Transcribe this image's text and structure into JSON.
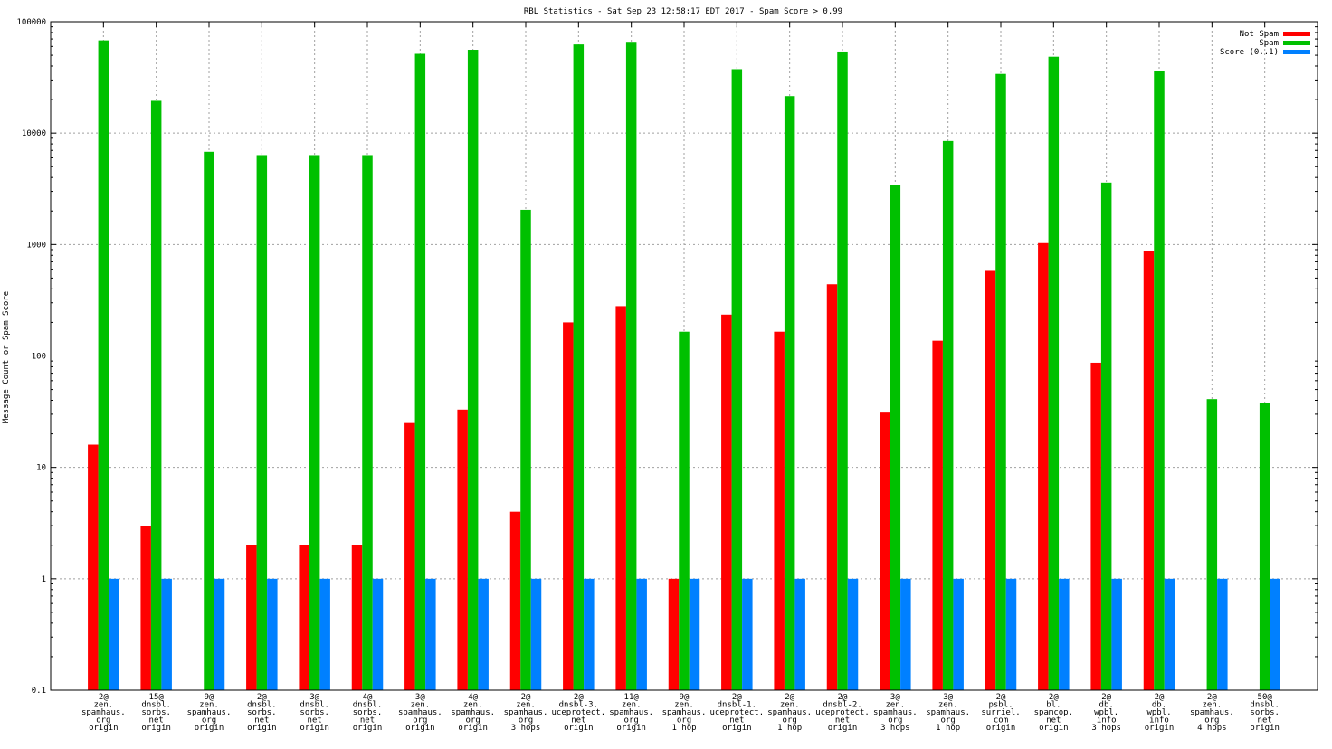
{
  "chart_data": {
    "type": "bar",
    "title": "RBL Statistics - Sat Sep 23 12:58:17 EDT 2017 - Spam Score > 0.99",
    "ylabel": "Message Count or Spam Score",
    "xlabel": "",
    "yscale": "log",
    "ylim": [
      0.1,
      100000
    ],
    "yticks": [
      "0.1",
      "1",
      "10",
      "100",
      "1000",
      "10000",
      "100000"
    ],
    "grid": true,
    "legend_position": "top-right",
    "categories": [
      [
        "2@",
        "zen.",
        "spamhaus.",
        "org",
        "origin"
      ],
      [
        "15@",
        "dnsbl.",
        "sorbs.",
        "net",
        "origin"
      ],
      [
        "9@",
        "zen.",
        "spamhaus.",
        "org",
        "origin"
      ],
      [
        "2@",
        "dnsbl.",
        "sorbs.",
        "net",
        "origin"
      ],
      [
        "3@",
        "dnsbl.",
        "sorbs.",
        "net",
        "origin"
      ],
      [
        "4@",
        "dnsbl.",
        "sorbs.",
        "net",
        "origin"
      ],
      [
        "3@",
        "zen.",
        "spamhaus.",
        "org",
        "origin"
      ],
      [
        "4@",
        "zen.",
        "spamhaus.",
        "org",
        "origin"
      ],
      [
        "2@",
        "zen.",
        "spamhaus.",
        "org",
        "3 hops"
      ],
      [
        "2@",
        "dnsbl-3.",
        "uceprotect.",
        "net",
        "origin"
      ],
      [
        "11@",
        "zen.",
        "spamhaus.",
        "org",
        "origin"
      ],
      [
        "9@",
        "zen.",
        "spamhaus.",
        "org",
        "1 hop"
      ],
      [
        "2@",
        "dnsbl-1.",
        "uceprotect.",
        "net",
        "origin"
      ],
      [
        "2@",
        "zen.",
        "spamhaus.",
        "org",
        "1 hop"
      ],
      [
        "2@",
        "dnsbl-2.",
        "uceprotect.",
        "net",
        "origin"
      ],
      [
        "3@",
        "zen.",
        "spamhaus.",
        "org",
        "3 hops"
      ],
      [
        "3@",
        "zen.",
        "spamhaus.",
        "org",
        "1 hop"
      ],
      [
        "2@",
        "psbl.",
        "surriel.",
        "com",
        "origin"
      ],
      [
        "2@",
        "bl.",
        "spamcop.",
        "net",
        "origin"
      ],
      [
        "2@",
        "db.",
        "wpbl.",
        "info",
        "3 hops"
      ],
      [
        "2@",
        "db.",
        "wpbl.",
        "info",
        "origin"
      ],
      [
        "2@",
        "zen.",
        "spamhaus.",
        "org",
        "4 hops"
      ],
      [
        "50@",
        "dnsbl.",
        "sorbs.",
        "net",
        "origin"
      ]
    ],
    "series": [
      {
        "name": "Not Spam",
        "color": "#ff0000",
        "values": [
          16,
          3,
          null,
          2,
          2,
          2,
          25,
          33,
          4,
          200,
          280,
          1,
          235,
          165,
          440,
          31,
          137,
          580,
          1030,
          87,
          870,
          null,
          null
        ]
      },
      {
        "name": "Spam",
        "color": "#00c000",
        "values": [
          68000,
          19500,
          6800,
          6350,
          6350,
          6350,
          51500,
          56000,
          2050,
          62500,
          66000,
          165,
          37500,
          21500,
          54000,
          3400,
          8500,
          34000,
          48500,
          3600,
          36000,
          41,
          38
        ]
      },
      {
        "name": "Score (0..1)",
        "color": "#0080ff",
        "values": [
          1,
          1,
          1,
          1,
          1,
          1,
          1,
          1,
          1,
          1,
          1,
          1,
          1,
          1,
          1,
          1,
          1,
          1,
          1,
          1,
          1,
          1,
          1
        ]
      }
    ]
  }
}
